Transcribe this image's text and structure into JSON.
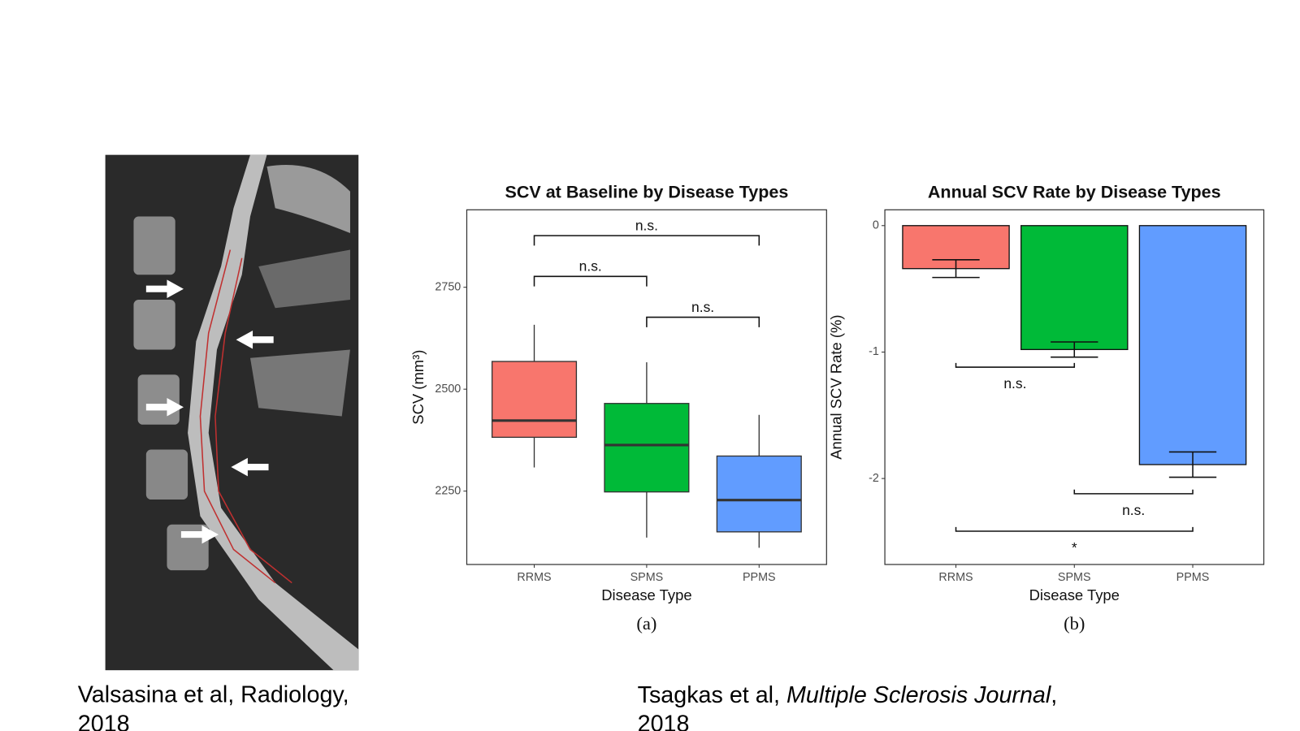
{
  "chart_data": [
    {
      "type": "box",
      "title": "SCV at Baseline by Disease Types",
      "panel_label": "(a)",
      "x_label": "Disease Type",
      "y_label": "SCV (mm³)",
      "categories": [
        "RRMS",
        "SPMS",
        "PPMS"
      ],
      "colors": [
        "#f8766d",
        "#00ba38",
        "#619cff"
      ],
      "whisker_low": [
        2308,
        2136,
        2111
      ],
      "q1": [
        2382,
        2248,
        2150
      ],
      "median": [
        2423,
        2363,
        2228
      ],
      "q3": [
        2568,
        2465,
        2336
      ],
      "whisker_high": [
        2658,
        2566,
        2437
      ],
      "ylim": [
        2070,
        2940
      ],
      "yticks": [
        2250,
        2500,
        2750
      ],
      "annotations": [
        {
          "label": "n.s.",
          "between": [
            0,
            1
          ]
        },
        {
          "label": "n.s.",
          "between": [
            1,
            2
          ]
        },
        {
          "label": "n.s.",
          "between": [
            0,
            2
          ]
        }
      ]
    },
    {
      "type": "bar",
      "title": "Annual SCV Rate by Disease Types",
      "panel_label": "(b)",
      "x_label": "Disease Type",
      "y_label": "Annual SCV Rate (%)",
      "categories": [
        "RRMS",
        "SPMS",
        "PPMS"
      ],
      "colors": [
        "#f8766d",
        "#00ba38",
        "#619cff"
      ],
      "values": [
        -0.34,
        -0.98,
        -1.89
      ],
      "errors": [
        0.07,
        0.06,
        0.1
      ],
      "ylim": [
        -2.68,
        0.125
      ],
      "yticks": [
        -2,
        -1,
        0
      ],
      "annotations": [
        {
          "label": "n.s.",
          "between": [
            0,
            1
          ]
        },
        {
          "label": "n.s.",
          "between": [
            1,
            2
          ]
        },
        {
          "label": "*",
          "between": [
            0,
            2
          ]
        }
      ]
    }
  ],
  "captions": [
    {
      "lines": [
        "Valsasina et al, Radiology,",
        "2018"
      ]
    },
    {
      "parts": [
        "Tsagkas et al, ",
        "Multiple Sclerosis Journal",
        ","
      ],
      "second_line": "2018"
    }
  ]
}
